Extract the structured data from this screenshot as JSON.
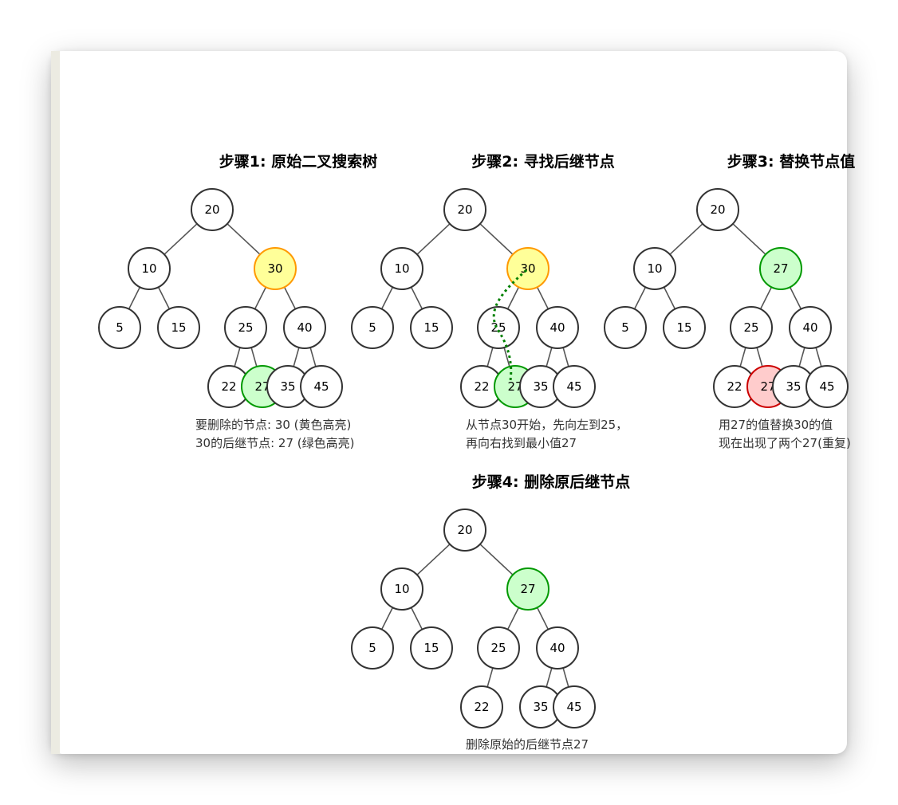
{
  "colors": {
    "node_fill": "#ffffff",
    "node_stroke": "#333333",
    "highlight_delete_fill": "#ffff99",
    "highlight_delete_stroke": "#ff9900",
    "highlight_successor_fill": "#ccffcc",
    "highlight_successor_stroke": "#009900",
    "highlight_duplicate_fill": "#ffcccc",
    "highlight_duplicate_stroke": "#cc0000",
    "path_stroke": "#008000"
  },
  "panels": [
    {
      "title": "步骤1: 原始二叉搜索树",
      "caption": [
        "要删除的节点: 30 (黄色高亮)",
        "30的后继节点: 27 (绿色高亮)"
      ],
      "nodes": [
        "20",
        "10",
        "30",
        "5",
        "15",
        "25",
        "40",
        "22",
        "27",
        "35",
        "45"
      ]
    },
    {
      "title": "步骤2: 寻找后继节点",
      "caption": [
        "从节点30开始，先向左到25，",
        "再向右找到最小值27"
      ],
      "nodes": [
        "20",
        "10",
        "30",
        "5",
        "15",
        "25",
        "40",
        "22",
        "27",
        "35",
        "45"
      ]
    },
    {
      "title": "步骤3: 替换节点值",
      "caption": [
        "用27的值替换30的值",
        "现在出现了两个27(重复)"
      ],
      "nodes": [
        "20",
        "10",
        "27",
        "5",
        "15",
        "25",
        "40",
        "22",
        "27",
        "35",
        "45"
      ]
    },
    {
      "title": "步骤4: 删除原后继节点",
      "caption": [
        "删除原始的后继节点27"
      ],
      "nodes": [
        "20",
        "10",
        "27",
        "5",
        "15",
        "25",
        "40",
        "22",
        "35",
        "45"
      ]
    }
  ]
}
